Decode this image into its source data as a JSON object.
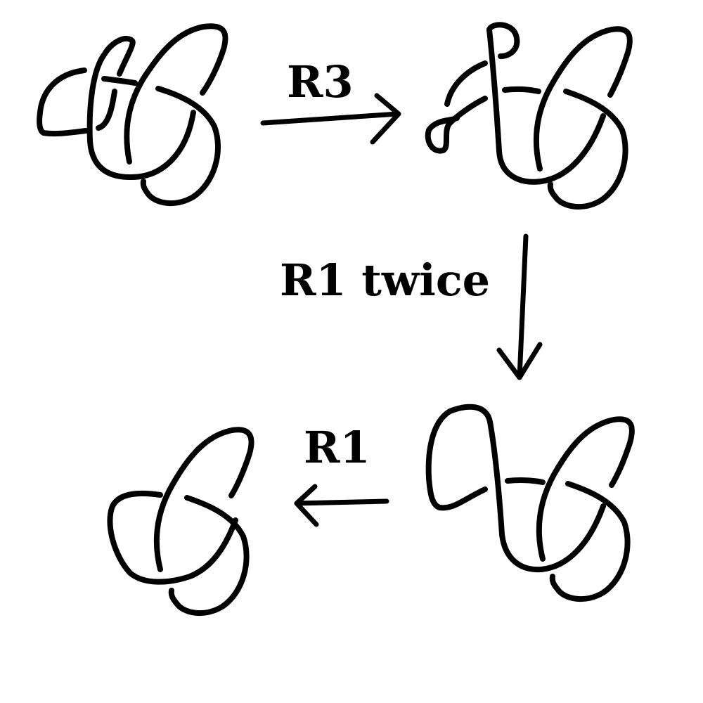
{
  "diagram": {
    "moves": [
      {
        "label": "R3"
      },
      {
        "label": "R1 twice"
      },
      {
        "label": "R1"
      }
    ],
    "stroke_color": "#000000",
    "background_color": "#ffffff"
  }
}
